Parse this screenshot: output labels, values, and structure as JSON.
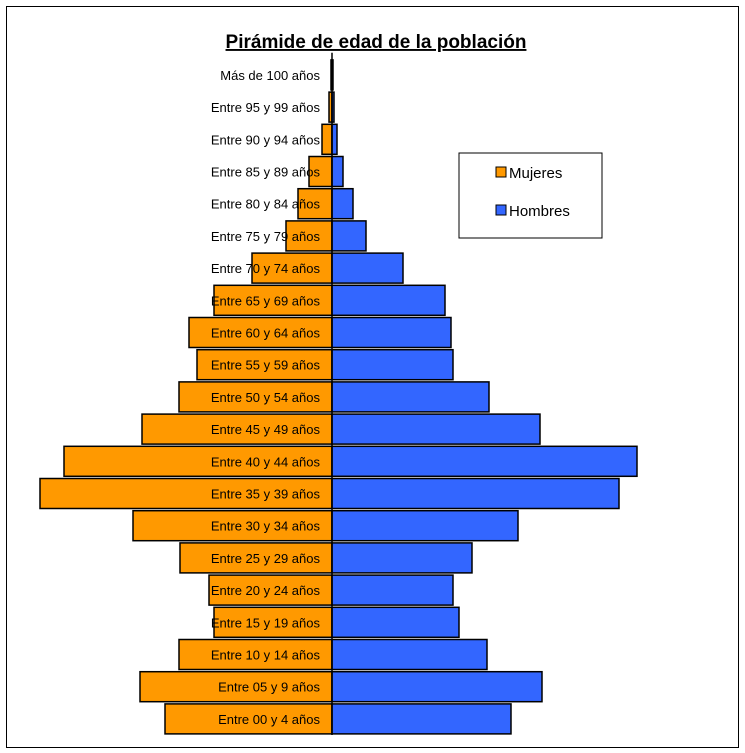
{
  "chart_data": {
    "type": "bar",
    "orientation": "horizontal-population-pyramid",
    "title": "Pirámide de edad de la población",
    "categories": [
      "Entre 00 y 4 años",
      "Entre 05 y 9 años",
      "Entre 10 y 14 años",
      "Entre 15 y 19 años",
      "Entre 20 y 24 años",
      "Entre 25 y 29 años",
      "Entre 30 y 34 años",
      "Entre 35 y 39 años",
      "Entre 40 y 44 años",
      "Entre 45 y 49 años",
      "Entre 50 y 54 años",
      "Entre 55 y 59 años",
      "Entre 60 y 64 años",
      "Entre 65 y 69 años",
      "Entre 70 y 74 años",
      "Entre 75 y 79 años",
      "Entre 80 y 84 años",
      "Entre 85 y 89 años",
      "Entre 90 y 94 años",
      "Entre 95 y 99 años",
      "Más de 100 años"
    ],
    "series": [
      {
        "name": "Mujeres",
        "color": "#FF9900",
        "side": "left",
        "values": [
          167,
          192,
          153,
          118,
          123,
          152,
          199,
          292,
          268,
          190,
          153,
          135,
          143,
          118,
          80,
          46,
          34,
          23,
          10,
          3,
          1
        ]
      },
      {
        "name": "Hombres",
        "color": "#3366FF",
        "side": "right",
        "values": [
          179,
          210,
          155,
          127,
          121,
          140,
          186,
          287,
          305,
          208,
          157,
          121,
          119,
          113,
          71,
          34,
          21,
          11,
          5,
          2,
          1
        ]
      }
    ],
    "legend": {
      "position": "right",
      "entries": [
        "Mujeres",
        "Hombres"
      ]
    },
    "grid": false,
    "axes_visible": false
  }
}
